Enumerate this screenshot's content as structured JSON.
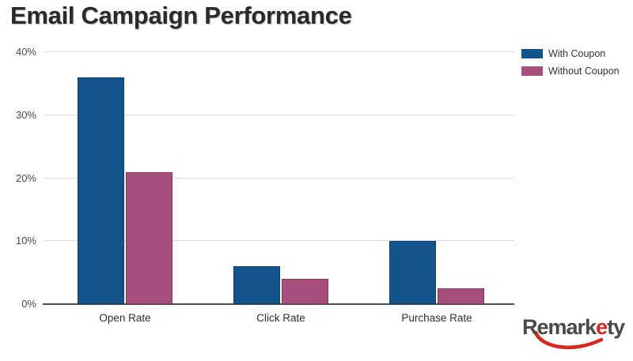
{
  "title": "Email Campaign Performance",
  "chart_data": {
    "type": "bar",
    "categories": [
      "Open Rate",
      "Click Rate",
      "Purchase Rate"
    ],
    "series": [
      {
        "name": "With Coupon",
        "values": [
          36,
          6,
          10
        ],
        "color": "#14548C",
        "border_color": "#0D3E68"
      },
      {
        "name": "Without Coupon",
        "values": [
          21,
          4,
          2.5
        ],
        "color": "#A74E7C",
        "border_color": "#86395F"
      }
    ],
    "title": "Email Campaign Performance",
    "xlabel": "",
    "ylabel": "",
    "ylim": [
      0,
      40
    ],
    "y_ticks": [
      0,
      10,
      20,
      30,
      40
    ],
    "y_tick_suffix": "%",
    "grid": true,
    "legend_position": "top-right"
  },
  "colors": {
    "grid_line": "#D9DEE4",
    "axis_line": "#4D4D4D",
    "tick_label": "#4A4A4A",
    "category_label": "#2E2E2E",
    "legend_label": "#333333",
    "title": "#2A2A2A"
  },
  "logo": {
    "text_start": "Remark",
    "text_accent": "e",
    "text_end": "ty",
    "text_color": "#4A4A48",
    "accent_color": "#D6281E"
  }
}
